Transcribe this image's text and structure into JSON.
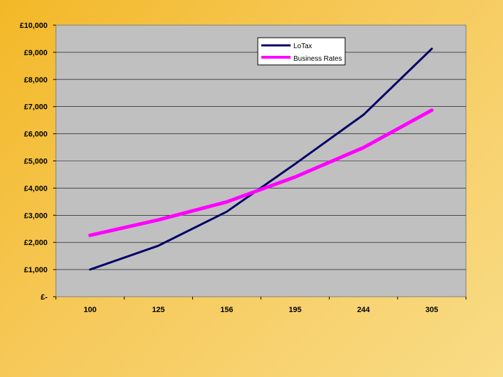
{
  "chart_data": {
    "type": "line",
    "categories": [
      "100",
      "125",
      "156",
      "195",
      "244",
      "305"
    ],
    "series": [
      {
        "name": "LoTax",
        "values": [
          1000,
          1880,
          3130,
          4890,
          6700,
          9130
        ],
        "color": "#000066"
      },
      {
        "name": "Business Rates",
        "values": [
          2260,
          2830,
          3490,
          4410,
          5490,
          6870
        ],
        "color": "#ff00ff"
      }
    ],
    "y_ticks": [
      "£-",
      "£1,000",
      "£2,000",
      "£3,000",
      "£4,000",
      "£5,000",
      "£6,000",
      "£7,000",
      "£8,000",
      "£9,000",
      "£10,000"
    ],
    "ylim": [
      0,
      10000
    ],
    "grid": true,
    "legend_position": "top-right",
    "plot_background": "#c0c0c0"
  }
}
